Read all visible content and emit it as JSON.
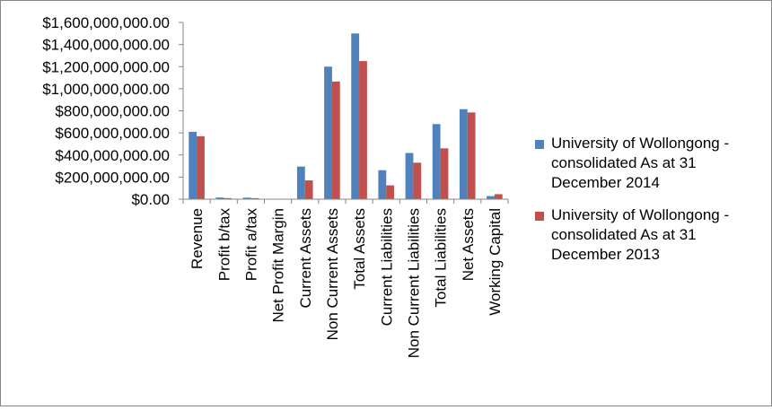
{
  "chart_data": {
    "type": "bar",
    "categories": [
      "Revenue",
      "Profit b/tax",
      "Profit a/tax",
      "Net Profit Margin",
      "Current Assets",
      "Non Current Assets",
      "Total Assets",
      "Current Liabilities",
      "Non Current Liabilities",
      "Total Liabilities",
      "Net Assets",
      "Working Capital"
    ],
    "series": [
      {
        "name": "University of Wollongong - consolidated As at 31 December 2014",
        "color": "#4F81BD",
        "values": [
          610000000,
          15000000,
          14000000,
          0,
          295000000,
          1200000000,
          1500000000,
          262000000,
          418000000,
          680000000,
          815000000,
          28000000
        ]
      },
      {
        "name": "University of Wollongong - consolidated As at 31 December 2013",
        "color": "#C0504D",
        "values": [
          570000000,
          10000000,
          9000000,
          0,
          170000000,
          1065000000,
          1250000000,
          125000000,
          330000000,
          460000000,
          785000000,
          45000000
        ]
      }
    ],
    "ylim": [
      0,
      1600000000
    ],
    "ytick_labels": [
      "$0.00",
      "$200,000,000.00",
      "$400,000,000.00",
      "$600,000,000.00",
      "$800,000,000.00",
      "$1,000,000,000.00",
      "$1,200,000,000.00",
      "$1,400,000,000.00",
      "$1,600,000,000.00"
    ],
    "grid": false,
    "legend_position": "right",
    "title": "",
    "xlabel": "",
    "ylabel": ""
  }
}
